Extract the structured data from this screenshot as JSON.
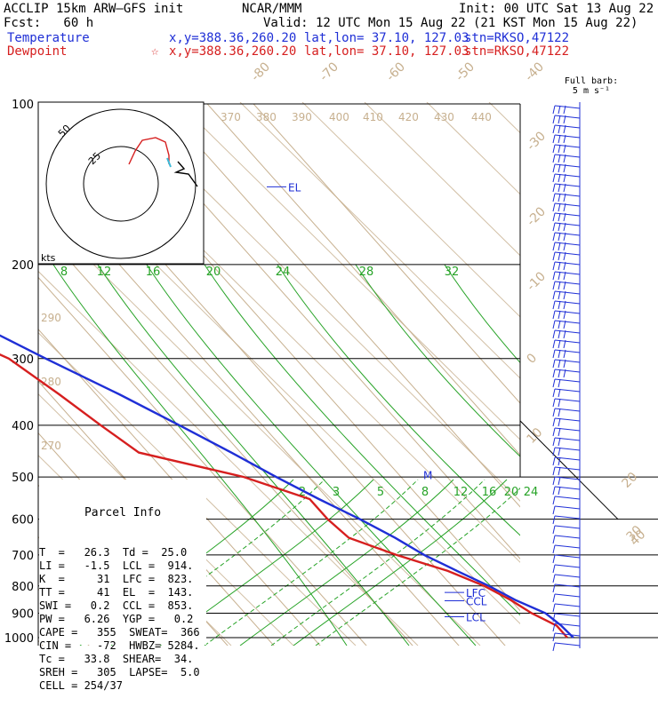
{
  "header": {
    "model": "ACCLIP 15km ARW–GFS init",
    "org": "NCAR/MMM",
    "init": "Init: 00 UTC Sat 13 Aug 22",
    "fcst": "Fcst:   60 h",
    "valid": "Valid: 12 UTC Mon 15 Aug 22 (21 KST Mon 15 Aug 22)",
    "temp_label": "Temperature",
    "temp_xy": "x,y=388.36,260.20",
    "temp_latlon": "lat,lon= 37.10, 127.03",
    "temp_stn": "stn=RKSO,47122",
    "dew_label": "Dewpoint",
    "dew_marker": "☆",
    "dew_xy": "x,y=388.36,260.20",
    "dew_latlon": "lat,lon= 37.10, 127.03",
    "dew_stn": "stn=RKSO,47122"
  },
  "barb_label": [
    "Full barb:",
    "5 m s⁻¹"
  ],
  "parcel": {
    "title": "Parcel Info",
    "rows": [
      "T  =   26.3  Td =  25.0",
      "LI =   -1.5  LCL =  914.",
      "K  =     31  LFC =  823.",
      "TT =     41  EL  =  143.",
      "SWI =   0.2  CCL =  853.",
      "PW =   6.26  YGP =   0.2",
      "CAPE =   355  SWEAT=  366",
      "CIN =    -72  HWBZ= 5284.",
      "Tc =   33.8  SHEAR=  34.",
      "SREH =   305  LAPSE=  5.0",
      "CELL = 254/37"
    ]
  },
  "colors": {
    "temperature": "#1f2fd6",
    "dewpoint": "#d61f1f",
    "isotherm": "#c7b08f",
    "mixing": "#27a327",
    "barb": "#1f2fd6",
    "grid": "#000000",
    "hodo_trace": "#d61f1f",
    "hodo_storm": "#3bb9d8"
  },
  "chart_data": {
    "type": "skew-t",
    "pressure_axis": {
      "ticks": [
        100,
        200,
        300,
        400,
        500,
        600,
        700,
        800,
        900,
        1000
      ],
      "range": [
        100,
        1000
      ],
      "scale": "log"
    },
    "isotherm_labels": [
      "-80",
      "-70",
      "-60",
      "-50",
      "-40",
      "-30",
      "-20",
      "-10",
      "0",
      "10",
      "20",
      "30",
      "40"
    ],
    "theta_labels": [
      "370",
      "380",
      "390",
      "400",
      "410",
      "420",
      "430",
      "440",
      "290",
      "280",
      "270"
    ],
    "mixing_labels_top": [
      "8",
      "12",
      "16",
      "20",
      "24",
      "28",
      "32"
    ],
    "mixing_labels_bottom": [
      "2",
      "3",
      "5",
      "8",
      "12",
      "16",
      "20",
      "24"
    ],
    "series": [
      {
        "name": "Temperature",
        "points": [
          [
            100,
            -74
          ],
          [
            130,
            -69
          ],
          [
            145,
            -66
          ],
          [
            160,
            -63
          ],
          [
            200,
            -55
          ],
          [
            250,
            -44
          ],
          [
            300,
            -34
          ],
          [
            350,
            -25
          ],
          [
            400,
            -18
          ],
          [
            450,
            -12
          ],
          [
            500,
            -7
          ],
          [
            550,
            -2
          ],
          [
            600,
            3
          ],
          [
            650,
            7
          ],
          [
            700,
            10
          ],
          [
            750,
            14
          ],
          [
            800,
            18
          ],
          [
            850,
            21
          ],
          [
            900,
            25
          ],
          [
            950,
            26
          ],
          [
            1000,
            26.3
          ]
        ]
      },
      {
        "name": "Dewpoint",
        "points": [
          [
            100,
            -83
          ],
          [
            110,
            -84
          ],
          [
            120,
            -82
          ],
          [
            140,
            -80
          ],
          [
            160,
            -77
          ],
          [
            200,
            -67
          ],
          [
            250,
            -54
          ],
          [
            300,
            -42
          ],
          [
            350,
            -38
          ],
          [
            400,
            -35
          ],
          [
            450,
            -32
          ],
          [
            500,
            -14
          ],
          [
            550,
            -4
          ],
          [
            600,
            -4
          ],
          [
            650,
            -3
          ],
          [
            700,
            4
          ],
          [
            750,
            12
          ],
          [
            800,
            17
          ],
          [
            850,
            20
          ],
          [
            900,
            22
          ],
          [
            950,
            25
          ],
          [
            1000,
            25
          ]
        ]
      }
    ],
    "markers": [
      {
        "label": "EL",
        "pressure": 143
      },
      {
        "label": "M",
        "pressure": 495
      },
      {
        "label": "LFC",
        "pressure": 823
      },
      {
        "label": "CCL",
        "pressure": 853
      },
      {
        "label": "LCL",
        "pressure": 914
      }
    ],
    "hodograph": {
      "ring_labels": [
        "50",
        "25",
        "kts"
      ],
      "axis_label": "kts"
    }
  }
}
